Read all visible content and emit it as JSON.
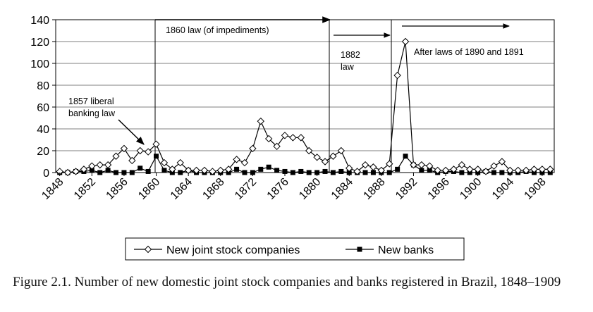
{
  "chart_data": {
    "type": "line",
    "caption": "Figure 2.1. Number of new domestic joint stock companies and banks registered in Brazil, 1848–1909",
    "x": [
      1848,
      1849,
      1850,
      1851,
      1852,
      1853,
      1854,
      1855,
      1856,
      1857,
      1858,
      1859,
      1860,
      1861,
      1862,
      1863,
      1864,
      1865,
      1866,
      1867,
      1868,
      1869,
      1870,
      1871,
      1872,
      1873,
      1874,
      1875,
      1876,
      1877,
      1878,
      1879,
      1880,
      1881,
      1882,
      1883,
      1884,
      1885,
      1886,
      1887,
      1888,
      1889,
      1890,
      1891,
      1892,
      1893,
      1894,
      1895,
      1896,
      1897,
      1898,
      1899,
      1900,
      1901,
      1902,
      1903,
      1904,
      1905,
      1906,
      1907,
      1908,
      1909
    ],
    "series": [
      {
        "name": "New joint stock companies",
        "color": "#000000",
        "marker": "diamond",
        "values": [
          1,
          0,
          1,
          3,
          6,
          7,
          7,
          15,
          22,
          11,
          20,
          19,
          26,
          9,
          3,
          9,
          2,
          2,
          2,
          1,
          2,
          3,
          12,
          9,
          22,
          47,
          31,
          24,
          34,
          32,
          32,
          20,
          14,
          10,
          15,
          20,
          4,
          1,
          7,
          5,
          2,
          8,
          89,
          120,
          7,
          7,
          6,
          2,
          2,
          3,
          7,
          3,
          3,
          1,
          6,
          10,
          2,
          2,
          2,
          3,
          3,
          3
        ]
      },
      {
        "name": "New banks",
        "color": "#000000",
        "marker": "square",
        "values": [
          0,
          0,
          1,
          1,
          2,
          0,
          2,
          0,
          0,
          0,
          4,
          1,
          15,
          2,
          0,
          0,
          2,
          0,
          0,
          0,
          0,
          0,
          3,
          0,
          0,
          3,
          5,
          2,
          1,
          0,
          1,
          0,
          0,
          1,
          0,
          1,
          0,
          0,
          0,
          0,
          0,
          0,
          3,
          15,
          7,
          2,
          2,
          0,
          1,
          1,
          0,
          0,
          0,
          1,
          0,
          0,
          0,
          0,
          1,
          0,
          0,
          0
        ]
      }
    ],
    "xlim": [
      1847.5,
      1909.5
    ],
    "xticks": [
      1848,
      1852,
      1856,
      1860,
      1864,
      1868,
      1872,
      1876,
      1880,
      1884,
      1888,
      1892,
      1896,
      1900,
      1904,
      1908
    ],
    "ylim": [
      0,
      140
    ],
    "yticks": [
      0,
      20,
      40,
      60,
      80,
      100,
      120,
      140
    ],
    "grid": true,
    "legend": "bottom",
    "annotations": [
      {
        "lines": [
          "1860 law (of impediments)"
        ]
      },
      {
        "lines": [
          "1882",
          "law"
        ]
      },
      {
        "lines": [
          "After laws of 1890 and 1891"
        ]
      },
      {
        "lines": [
          "1857 liberal",
          "banking law"
        ]
      }
    ]
  }
}
